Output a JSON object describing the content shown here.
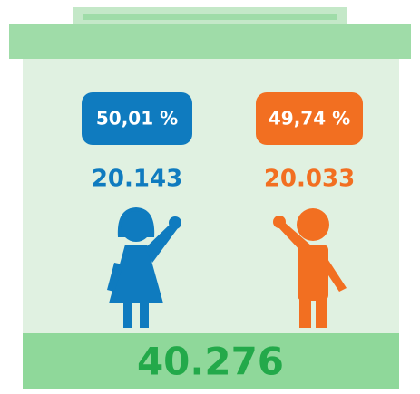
{
  "female": {
    "percent": "50,01 %",
    "count": "20.143"
  },
  "male": {
    "percent": "49,74 %",
    "count": "20.033"
  },
  "total": "40.276"
}
